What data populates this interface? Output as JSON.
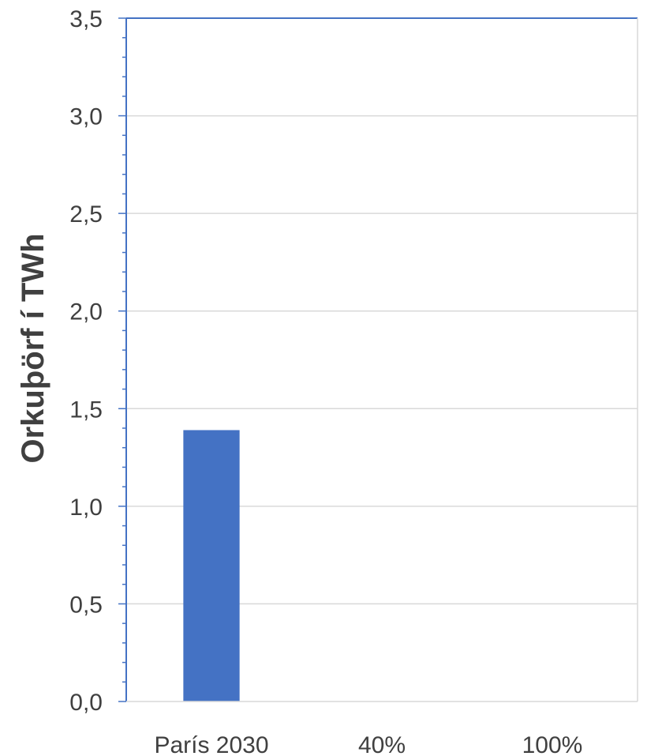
{
  "chart_data": {
    "type": "bar",
    "title": "",
    "xlabel": "",
    "ylabel": "Orkuþörf í TWh",
    "categories": [
      "París 2030",
      "40%",
      "100%"
    ],
    "values": [
      1.39,
      0,
      0
    ],
    "ylim": [
      0,
      3.5
    ],
    "yticks": [
      "0,0",
      "0,5",
      "1,0",
      "1,5",
      "2,0",
      "2,5",
      "3,0",
      "3,5"
    ],
    "grid": true,
    "legend": "none",
    "bar_color": "#4472C4",
    "axis_color": "#4472C4",
    "grid_color": "#D9D9D9"
  }
}
